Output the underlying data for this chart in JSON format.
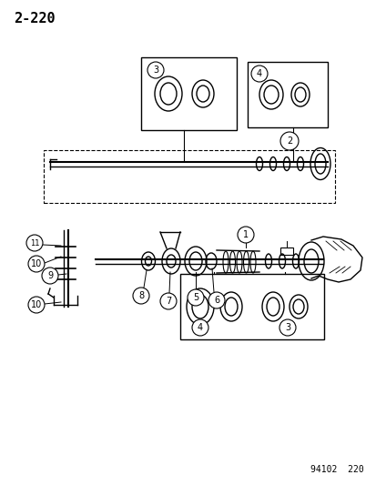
{
  "page_number": "2-220",
  "catalog_number": "94102  220",
  "background_color": "#ffffff",
  "line_color": "#000000",
  "figsize": [
    4.14,
    5.33
  ],
  "dpi": 100
}
